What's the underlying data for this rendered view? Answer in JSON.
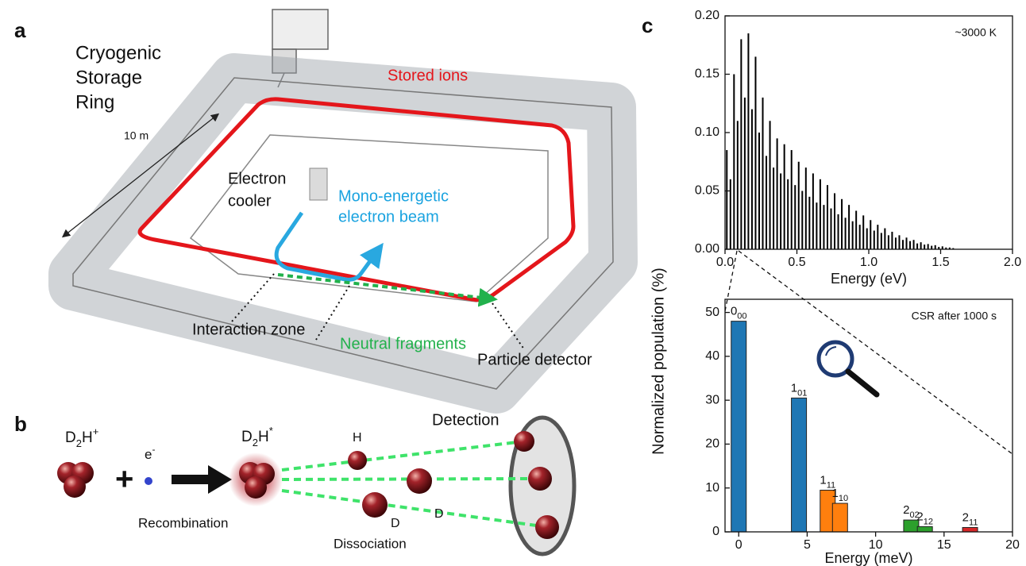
{
  "panel_a": {
    "label": "a",
    "title_lines": [
      "Cryogenic",
      "Storage",
      "Ring"
    ],
    "scale": "10 m",
    "stored_ions": "Stored ions",
    "electron_cooler": [
      "Electron",
      "cooler"
    ],
    "electron_beam": [
      "Mono-energetic",
      "electron beam"
    ],
    "interaction_zone": "Interaction zone",
    "neutral_fragments": "Neutral fragments",
    "particle_detector": "Particle detector"
  },
  "panel_b": {
    "label": "b",
    "reactant_ion": [
      "D",
      "2",
      "H",
      "+"
    ],
    "electron": [
      "e",
      "-"
    ],
    "plus": "+",
    "excited": [
      "D",
      "2",
      "H",
      "*"
    ],
    "fragments": [
      "H",
      "D",
      "D"
    ],
    "detection": "Detection",
    "recombination": "Recombination",
    "dissociation": "Dissociation"
  },
  "panel_c": {
    "label": "c"
  },
  "chart_data": [
    {
      "type": "bar",
      "y_label": "Normalized population (%)",
      "x_label": "Energy (eV)",
      "annotation": "~3000 K",
      "color": "#000000",
      "xlim": [
        0,
        2
      ],
      "ylim": [
        0,
        0.2
      ],
      "xticks": [
        {
          "value": 0,
          "label": "0.0"
        },
        {
          "value": 0.5,
          "label": "0.5"
        },
        {
          "value": 1,
          "label": "1.0"
        },
        {
          "value": 1.5,
          "label": "1.5"
        },
        {
          "value": 2,
          "label": "2.0"
        }
      ],
      "yticks": [
        {
          "value": 0,
          "label": "0.00"
        },
        0.05,
        {
          "value": 0.1,
          "label": "0.10"
        },
        0.15,
        {
          "value": 0.2,
          "label": "0.20"
        }
      ],
      "x": [
        0.0125,
        0.0375,
        0.0625,
        0.0875,
        0.1125,
        0.1375,
        0.1625,
        0.1875,
        0.2125,
        0.2375,
        0.2625,
        0.2875,
        0.3125,
        0.3375,
        0.3625,
        0.3875,
        0.4125,
        0.4375,
        0.4625,
        0.4875,
        0.5125,
        0.5375,
        0.5625,
        0.5875,
        0.6125,
        0.6375,
        0.6625,
        0.6875,
        0.7125,
        0.7375,
        0.7625,
        0.7875,
        0.8125,
        0.8375,
        0.8625,
        0.8875,
        0.9125,
        0.9375,
        0.9625,
        0.9875,
        1.0125,
        1.0375,
        1.0625,
        1.0875,
        1.1125,
        1.1375,
        1.1625,
        1.1875,
        1.2125,
        1.2375,
        1.2625,
        1.2875,
        1.3125,
        1.3375,
        1.3625,
        1.3875,
        1.4125,
        1.4375,
        1.4625,
        1.4875,
        1.5125,
        1.5375,
        1.5625,
        1.5875
      ],
      "values": [
        0.085,
        0.06,
        0.15,
        0.11,
        0.18,
        0.13,
        0.185,
        0.12,
        0.165,
        0.1,
        0.13,
        0.08,
        0.11,
        0.07,
        0.095,
        0.065,
        0.09,
        0.06,
        0.085,
        0.055,
        0.075,
        0.05,
        0.07,
        0.045,
        0.065,
        0.04,
        0.06,
        0.038,
        0.055,
        0.035,
        0.048,
        0.03,
        0.043,
        0.027,
        0.038,
        0.024,
        0.033,
        0.021,
        0.029,
        0.018,
        0.025,
        0.016,
        0.021,
        0.014,
        0.018,
        0.012,
        0.015,
        0.01,
        0.012,
        0.008,
        0.01,
        0.007,
        0.008,
        0.005,
        0.006,
        0.004,
        0.0045,
        0.003,
        0.0035,
        0.002,
        0.0025,
        0.0015,
        0.0015,
        0.001
      ]
    },
    {
      "type": "bar",
      "x_label": "Energy (meV)",
      "annotation": "CSR after 1000 s",
      "xlim": [
        -1,
        20
      ],
      "ylim": [
        0,
        53
      ],
      "xticks": [
        0,
        5,
        10,
        15,
        20
      ],
      "yticks": [
        0,
        10,
        20,
        30,
        40,
        50
      ],
      "x": [
        0,
        4.4,
        6.5,
        7.4,
        12.6,
        13.6,
        16.9
      ],
      "values": [
        48,
        30.5,
        9.5,
        6.5,
        2.7,
        1.2,
        1
      ],
      "colors": [
        "#1f77b4",
        "#1f77b4",
        "#ff7f0e",
        "#ff7f0e",
        "#2ca02c",
        "#2ca02c",
        "#d62728"
      ],
      "level_labels": [
        [
          "0",
          "00"
        ],
        [
          "1",
          "01"
        ],
        [
          "1",
          "11"
        ],
        [
          "1",
          "10"
        ],
        [
          "2",
          "02"
        ],
        [
          "2",
          "12"
        ],
        [
          "2",
          "11"
        ]
      ]
    }
  ]
}
